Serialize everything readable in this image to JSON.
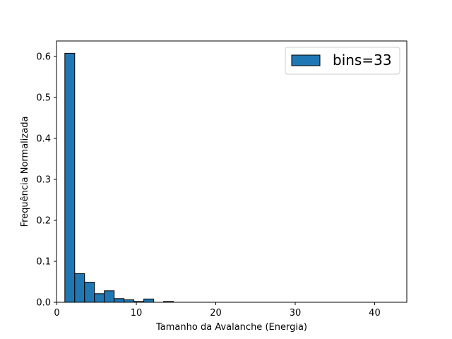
{
  "chart_data": {
    "type": "bar",
    "subtype": "histogram",
    "title": "",
    "xlabel": "Tamanho da Avalanche (Energia)",
    "ylabel": "Frequência Normalizada",
    "xlim": [
      -0.05,
      44.05
    ],
    "ylim": [
      0,
      0.638
    ],
    "xticks": [
      0,
      10,
      20,
      30,
      40
    ],
    "yticks": [
      0.0,
      0.1,
      0.2,
      0.3,
      0.4,
      0.5,
      0.6
    ],
    "xtick_labels": [
      "0",
      "10",
      "20",
      "30",
      "40"
    ],
    "ytick_labels": [
      "0.0",
      "0.1",
      "0.2",
      "0.3",
      "0.4",
      "0.5",
      "0.6"
    ],
    "grid": false,
    "legend": {
      "position": "top-right",
      "entries": [
        {
          "label": "bins=33",
          "color": "#1f77b4"
        }
      ]
    },
    "bar_color": "#1f77b4",
    "edge_color": "#000000",
    "bin_edges": [
      1.0,
      2.2424,
      3.4848,
      4.7273,
      5.9697,
      7.2121,
      8.4545,
      9.697,
      10.9394,
      12.1818,
      13.4242,
      14.6667,
      15.9091,
      17.1515,
      18.3939,
      19.6364,
      20.8788,
      22.1212,
      23.3636,
      24.6061,
      25.8485,
      27.0909,
      28.3333,
      29.5758,
      30.8182,
      32.0606,
      33.303,
      34.5455,
      35.7879,
      37.0303,
      38.2727,
      39.5152,
      40.7576,
      42.0
    ],
    "values": [
      0.608,
      0.07,
      0.049,
      0.021,
      0.028,
      0.009,
      0.006,
      0.002,
      0.008,
      0.0,
      0.002,
      0.0,
      0.0,
      0.0,
      0.0,
      0.0,
      0.0,
      0.0,
      0.0,
      0.0,
      0.0,
      0.0,
      0.0,
      0.0,
      0.0,
      0.0,
      0.0,
      0.0,
      0.0,
      0.0,
      0.0,
      0.0,
      0.0
    ]
  }
}
